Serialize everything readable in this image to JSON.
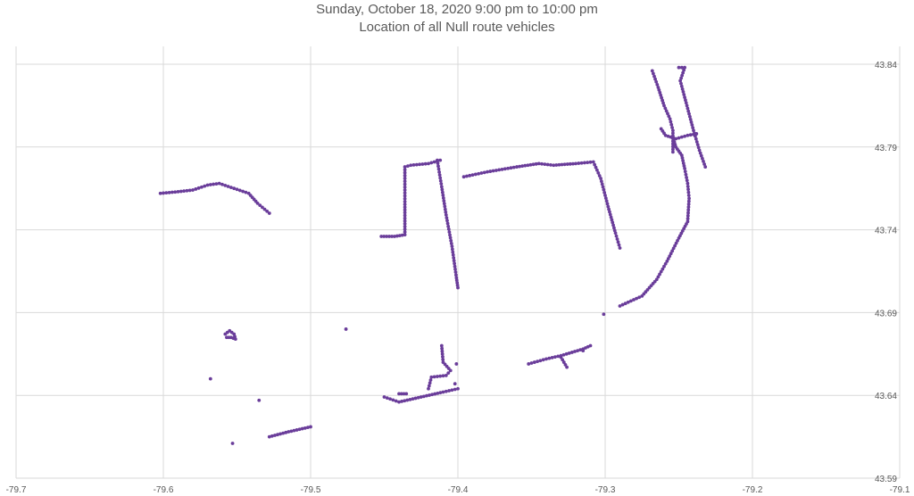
{
  "chart_data": {
    "type": "scatter",
    "title": "Sunday, October 18, 2020 9:00 pm to 10:00 pm",
    "subtitle": "Location of all Null route vehicles",
    "xlim": [
      -79.7,
      -79.1
    ],
    "ylim": [
      43.59,
      43.84
    ],
    "xticks": [
      -79.7,
      -79.6,
      -79.5,
      -79.4,
      -79.3,
      -79.2,
      -79.1
    ],
    "yticks": [
      43.59,
      43.64,
      43.69,
      43.74,
      43.79,
      43.84
    ],
    "xtick_labels": [
      "-79.7",
      "-79.6",
      "-79.5",
      "-79.4",
      "-79.3",
      "-79.2",
      "-79.1"
    ],
    "ytick_labels": [
      "43.59",
      "43.64",
      "43.69",
      "43.74",
      "43.79",
      "43.84"
    ],
    "grid": true,
    "point_color": "#6a3d9a",
    "paths": [
      [
        [
          -79.602,
          43.762
        ],
        [
          -79.59,
          43.763
        ],
        [
          -79.58,
          43.764
        ],
        [
          -79.57,
          43.767
        ],
        [
          -79.562,
          43.768
        ],
        [
          -79.552,
          43.765
        ],
        [
          -79.542,
          43.762
        ],
        [
          -79.536,
          43.756
        ],
        [
          -79.528,
          43.75
        ]
      ],
      [
        [
          -79.452,
          43.736
        ],
        [
          -79.443,
          43.736
        ],
        [
          -79.436,
          43.737
        ],
        [
          -79.436,
          43.757
        ],
        [
          -79.436,
          43.778
        ],
        [
          -79.432,
          43.779
        ],
        [
          -79.42,
          43.78
        ],
        [
          -79.412,
          43.782
        ]
      ],
      [
        [
          -79.414,
          43.782
        ],
        [
          -79.411,
          43.766
        ],
        [
          -79.408,
          43.749
        ],
        [
          -79.404,
          43.73
        ],
        [
          -79.401,
          43.711
        ],
        [
          -79.4,
          43.705
        ]
      ],
      [
        [
          -79.396,
          43.772
        ],
        [
          -79.38,
          43.775
        ],
        [
          -79.36,
          43.778
        ],
        [
          -79.345,
          43.78
        ],
        [
          -79.335,
          43.779
        ],
        [
          -79.32,
          43.78
        ],
        [
          -79.308,
          43.781
        ],
        [
          -79.303,
          43.771
        ],
        [
          -79.298,
          43.754
        ],
        [
          -79.293,
          43.738
        ],
        [
          -79.29,
          43.729
        ]
      ],
      [
        [
          -79.268,
          43.836
        ],
        [
          -79.264,
          43.826
        ],
        [
          -79.26,
          43.815
        ],
        [
          -79.256,
          43.807
        ],
        [
          -79.254,
          43.8
        ],
        [
          -79.254,
          43.787
        ]
      ],
      [
        [
          -79.25,
          43.838
        ],
        [
          -79.246,
          43.838
        ],
        [
          -79.249,
          43.83
        ],
        [
          -79.246,
          43.82
        ],
        [
          -79.243,
          43.81
        ],
        [
          -79.24,
          43.8
        ],
        [
          -79.236,
          43.788
        ],
        [
          -79.232,
          43.778
        ]
      ],
      [
        [
          -79.262,
          43.801
        ],
        [
          -79.259,
          43.797
        ],
        [
          -79.252,
          43.795
        ],
        [
          -79.244,
          43.797
        ],
        [
          -79.238,
          43.798
        ]
      ],
      [
        [
          -79.254,
          43.796
        ],
        [
          -79.252,
          43.79
        ],
        [
          -79.248,
          43.785
        ],
        [
          -79.246,
          43.777
        ],
        [
          -79.244,
          43.768
        ],
        [
          -79.243,
          43.759
        ],
        [
          -79.244,
          43.745
        ],
        [
          -79.25,
          43.735
        ],
        [
          -79.258,
          43.721
        ],
        [
          -79.265,
          43.71
        ],
        [
          -79.275,
          43.7
        ],
        [
          -79.29,
          43.694
        ]
      ],
      [
        [
          -79.558,
          43.677
        ],
        [
          -79.555,
          43.679
        ],
        [
          -79.552,
          43.677
        ],
        [
          -79.551,
          43.674
        ],
        [
          -79.554,
          43.675
        ],
        [
          -79.557,
          43.675
        ]
      ],
      [
        [
          -79.528,
          43.615
        ],
        [
          -79.515,
          43.618
        ],
        [
          -79.5,
          43.621
        ]
      ],
      [
        [
          -79.45,
          43.639
        ],
        [
          -79.44,
          43.636
        ],
        [
          -79.425,
          43.639
        ],
        [
          -79.41,
          43.642
        ],
        [
          -79.4,
          43.644
        ]
      ],
      [
        [
          -79.42,
          43.644
        ],
        [
          -79.418,
          43.651
        ],
        [
          -79.408,
          43.652
        ],
        [
          -79.405,
          43.655
        ],
        [
          -79.41,
          43.66
        ],
        [
          -79.411,
          43.67
        ]
      ],
      [
        [
          -79.44,
          43.641
        ],
        [
          -79.435,
          43.641
        ]
      ],
      [
        [
          -79.352,
          43.659
        ],
        [
          -79.34,
          43.662
        ],
        [
          -79.33,
          43.664
        ],
        [
          -79.315,
          43.668
        ],
        [
          -79.31,
          43.67
        ]
      ],
      [
        [
          -79.33,
          43.663
        ],
        [
          -79.328,
          43.66
        ],
        [
          -79.326,
          43.657
        ]
      ]
    ],
    "points": [
      [
        -79.476,
        43.68
      ],
      [
        -79.568,
        43.65
      ],
      [
        -79.535,
        43.637
      ],
      [
        -79.553,
        43.611
      ],
      [
        -79.401,
        43.659
      ],
      [
        -79.301,
        43.689
      ],
      [
        -79.402,
        43.647
      ],
      [
        -79.315,
        43.667
      ]
    ]
  }
}
